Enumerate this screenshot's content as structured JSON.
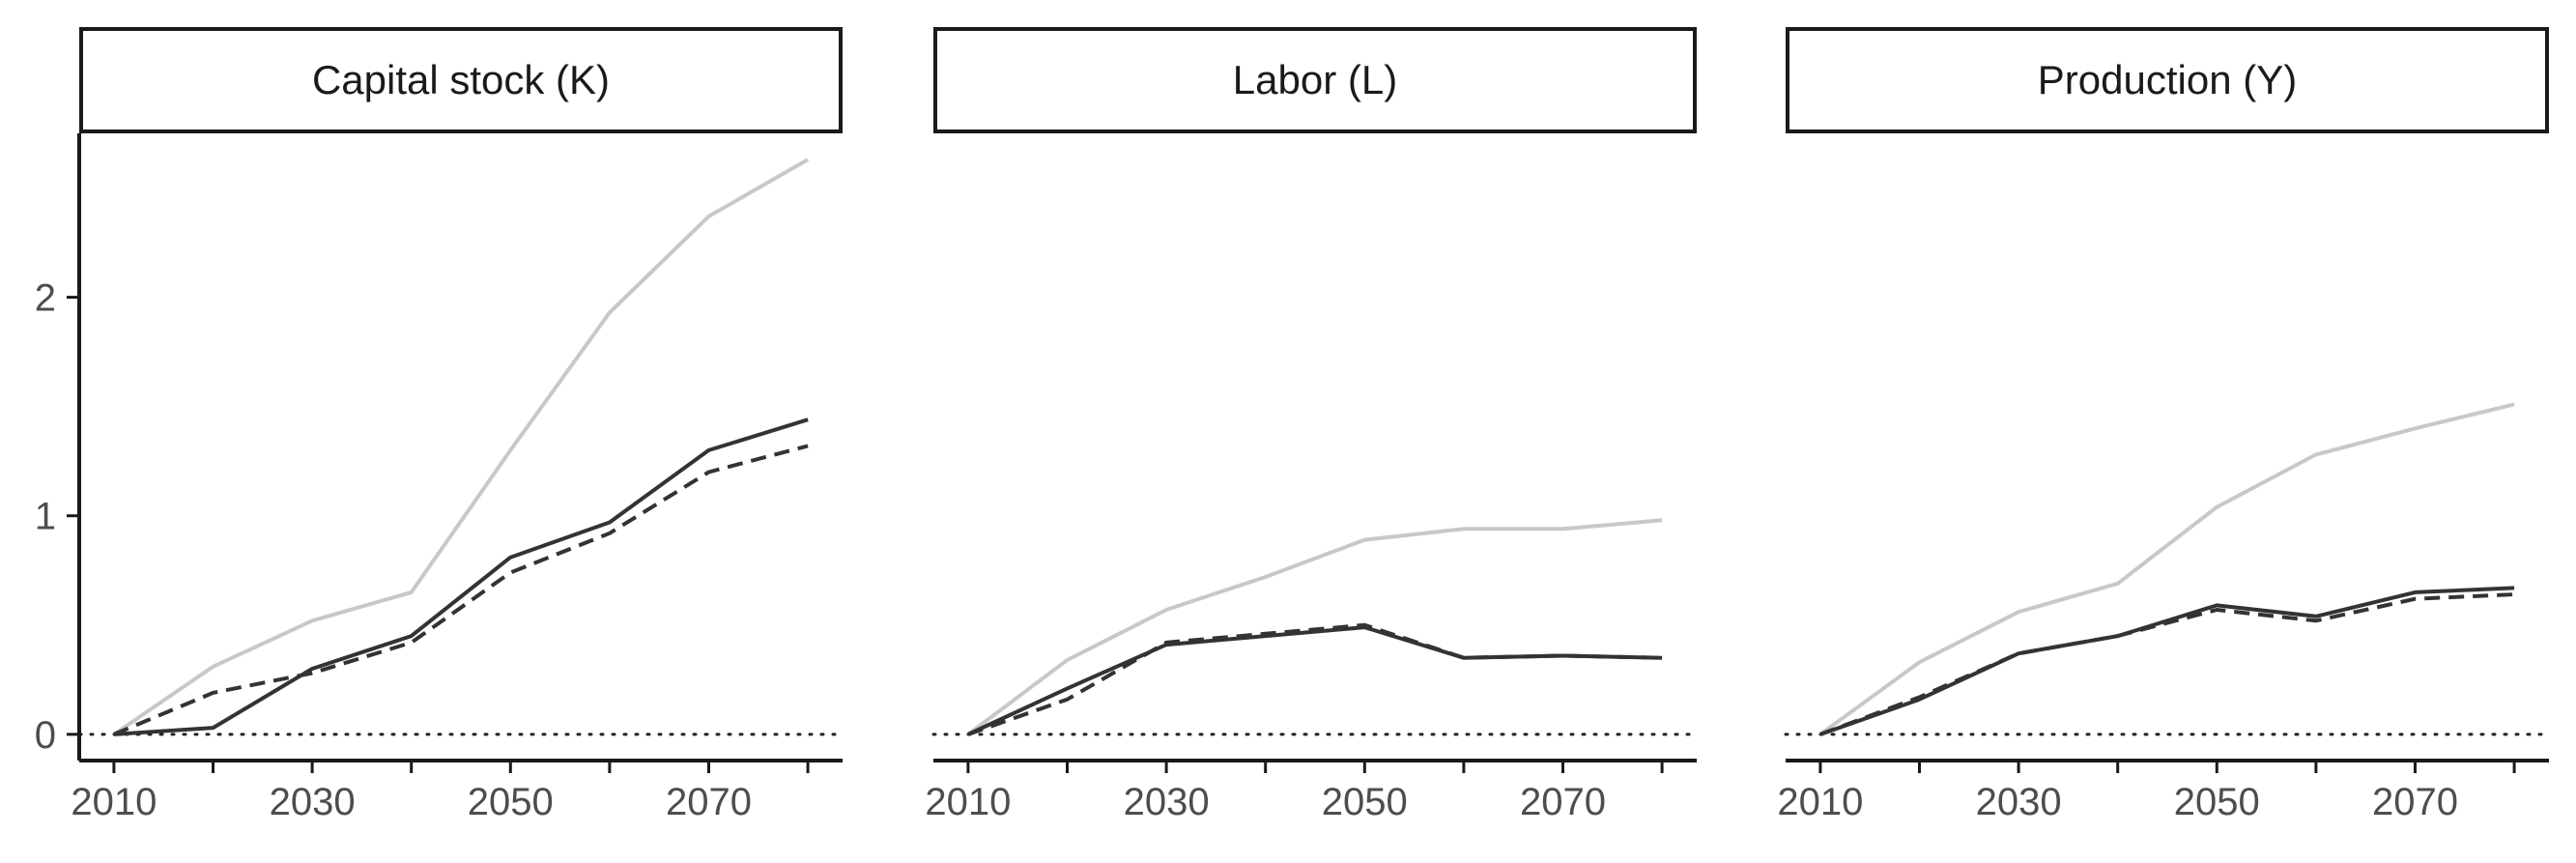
{
  "chart_data": [
    {
      "type": "line",
      "title": "Capital stock (K)",
      "x": [
        2010,
        2020,
        2030,
        2040,
        2050,
        2060,
        2070,
        2080
      ],
      "xticks": [
        2010,
        2030,
        2050,
        2070
      ],
      "yticks": [
        0,
        1,
        2
      ],
      "ylim": [
        -0.12,
        2.75
      ],
      "xlim": [
        2006.5,
        2083.5
      ],
      "reference_line": 0,
      "series": [
        {
          "style": "solid-light",
          "color": "#c8c8c8",
          "values": [
            0,
            0.31,
            0.52,
            0.65,
            1.3,
            1.93,
            2.37,
            2.63
          ]
        },
        {
          "style": "solid-dark",
          "color": "#333333",
          "values": [
            0,
            0.03,
            0.3,
            0.45,
            0.81,
            0.97,
            1.3,
            1.44
          ]
        },
        {
          "style": "dashed",
          "color": "#333333",
          "values": [
            0,
            0.19,
            0.28,
            0.42,
            0.74,
            0.92,
            1.2,
            1.32
          ]
        }
      ]
    },
    {
      "type": "line",
      "title": "Labor (L)",
      "x": [
        2010,
        2020,
        2030,
        2040,
        2050,
        2060,
        2070,
        2080
      ],
      "xticks": [
        2010,
        2030,
        2050,
        2070
      ],
      "yticks": [
        0,
        1,
        2
      ],
      "ylim": [
        -0.12,
        2.75
      ],
      "xlim": [
        2006.5,
        2083.5
      ],
      "reference_line": 0,
      "series": [
        {
          "style": "solid-light",
          "color": "#c8c8c8",
          "values": [
            0,
            0.34,
            0.57,
            0.72,
            0.89,
            0.94,
            0.94,
            0.98
          ]
        },
        {
          "style": "solid-dark",
          "color": "#333333",
          "values": [
            0,
            0.21,
            0.41,
            0.45,
            0.49,
            0.35,
            0.36,
            0.35
          ]
        },
        {
          "style": "dashed",
          "color": "#333333",
          "values": [
            0,
            0.16,
            0.42,
            0.46,
            0.5,
            0.35,
            0.36,
            0.35
          ]
        }
      ]
    },
    {
      "type": "line",
      "title": "Production (Y)",
      "x": [
        2010,
        2020,
        2030,
        2040,
        2050,
        2060,
        2070,
        2080
      ],
      "xticks": [
        2010,
        2030,
        2050,
        2070
      ],
      "yticks": [
        0,
        1,
        2
      ],
      "ylim": [
        -0.12,
        2.75
      ],
      "xlim": [
        2006.5,
        2083.5
      ],
      "reference_line": 0,
      "series": [
        {
          "style": "solid-light",
          "color": "#c8c8c8",
          "values": [
            0,
            0.33,
            0.56,
            0.69,
            1.04,
            1.28,
            1.4,
            1.51
          ]
        },
        {
          "style": "solid-dark",
          "color": "#333333",
          "values": [
            0,
            0.16,
            0.37,
            0.45,
            0.59,
            0.54,
            0.65,
            0.67
          ]
        },
        {
          "style": "dashed",
          "color": "#333333",
          "values": [
            0,
            0.17,
            0.37,
            0.45,
            0.57,
            0.52,
            0.62,
            0.64
          ]
        }
      ]
    }
  ]
}
